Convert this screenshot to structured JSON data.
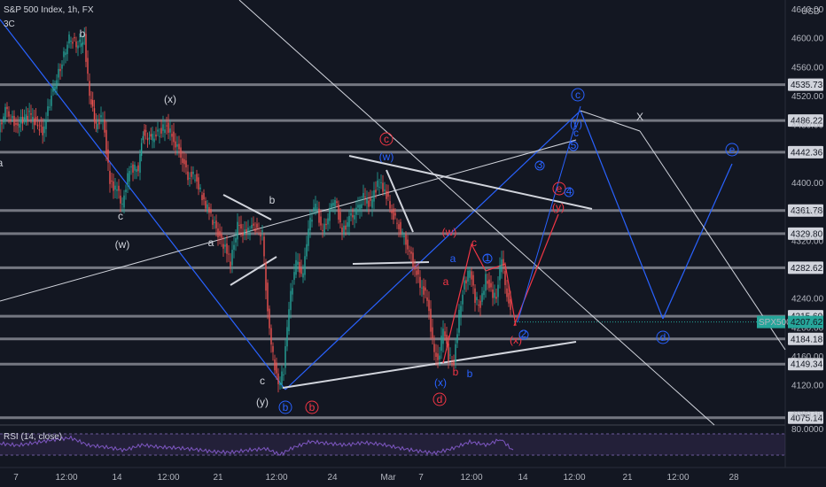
{
  "header": {
    "title": "S&P 500 Index, 1h, FX",
    "sub": "3C"
  },
  "currency": "USD",
  "rsi_label": "RSI (14, close)",
  "rsi_level": "80.0000",
  "colors": {
    "background": "#131722",
    "level_line": "#9598a1",
    "blue_wave": "#2962ff",
    "red_wave": "#f23645",
    "white_line": "#d1d4dc",
    "candle_up": "#26a69a",
    "candle_down": "#ef5350",
    "rsi": "#7e57c2",
    "price_tag": "#26a69a"
  },
  "chart_data": {
    "type": "candlestick",
    "title": "S&P 500 Index, 1h, FX",
    "y_axis_ticks": [
      "4640.00",
      "4600.00",
      "4560.00",
      "4520.00",
      "4480.00",
      "4400.00",
      "4360.00",
      "4320.00",
      "4240.00",
      "4200.00",
      "4160.00",
      "4120.00",
      "4080.00"
    ],
    "y_tick_values": [
      4640,
      4600,
      4560,
      4520,
      4480,
      4400,
      4360,
      4320,
      4240,
      4200,
      4160,
      4120,
      4080
    ],
    "ylim": [
      4070,
      4648
    ],
    "x_ticks": [
      "7",
      "12:00",
      "14",
      "12:00",
      "21",
      "12:00",
      "24",
      "Mar",
      "7",
      "12:00",
      "14",
      "12:00",
      "21",
      "12:00",
      "28"
    ],
    "horizontal_levels": [
      {
        "label": "4535.73",
        "value": 4535.73
      },
      {
        "label": "4486.22",
        "value": 4486.22
      },
      {
        "label": "4442.36",
        "value": 4442.36
      },
      {
        "label": "4361.78",
        "value": 4361.78
      },
      {
        "label": "4329.80",
        "value": 4329.8
      },
      {
        "label": "4282.62",
        "value": 4282.62
      },
      {
        "label": "4215.60",
        "value": 4215.6
      },
      {
        "label": "4184.18",
        "value": 4184.18
      },
      {
        "label": "4149.34",
        "value": 4149.34
      },
      {
        "label": "4075.14",
        "value": 4075.14
      }
    ],
    "current_price": {
      "symbol": "SPX500",
      "label": "4207.62",
      "value": 4207.62
    },
    "price_path": [
      [
        0,
        4470
      ],
      [
        8,
        4500
      ],
      [
        20,
        4480
      ],
      [
        35,
        4495
      ],
      [
        50,
        4470
      ],
      [
        60,
        4520
      ],
      [
        70,
        4560
      ],
      [
        80,
        4600
      ],
      [
        90,
        4590
      ],
      [
        97,
        4600
      ],
      [
        103,
        4520
      ],
      [
        110,
        4480
      ],
      [
        118,
        4490
      ],
      [
        126,
        4400
      ],
      [
        134,
        4390
      ],
      [
        140,
        4370
      ],
      [
        148,
        4420
      ],
      [
        158,
        4420
      ],
      [
        163,
        4470
      ],
      [
        172,
        4460
      ],
      [
        182,
        4470
      ],
      [
        190,
        4480
      ],
      [
        198,
        4460
      ],
      [
        206,
        4440
      ],
      [
        214,
        4410
      ],
      [
        222,
        4410
      ],
      [
        230,
        4380
      ],
      [
        238,
        4360
      ],
      [
        248,
        4330
      ],
      [
        256,
        4310
      ],
      [
        262,
        4290
      ],
      [
        270,
        4340
      ],
      [
        278,
        4330
      ],
      [
        288,
        4340
      ],
      [
        298,
        4330
      ],
      [
        304,
        4220
      ],
      [
        310,
        4160
      ],
      [
        316,
        4120
      ],
      [
        322,
        4140
      ],
      [
        328,
        4230
      ],
      [
        336,
        4290
      ],
      [
        344,
        4270
      ],
      [
        350,
        4340
      ],
      [
        358,
        4370
      ],
      [
        366,
        4330
      ],
      [
        374,
        4360
      ],
      [
        380,
        4380
      ],
      [
        388,
        4330
      ],
      [
        396,
        4350
      ],
      [
        404,
        4360
      ],
      [
        412,
        4380
      ],
      [
        420,
        4370
      ],
      [
        428,
        4400
      ],
      [
        436,
        4390
      ],
      [
        444,
        4360
      ],
      [
        452,
        4340
      ],
      [
        460,
        4320
      ],
      [
        468,
        4290
      ],
      [
        476,
        4260
      ],
      [
        484,
        4240
      ],
      [
        490,
        4180
      ],
      [
        496,
        4150
      ],
      [
        502,
        4200
      ],
      [
        508,
        4160
      ],
      [
        514,
        4150
      ],
      [
        520,
        4220
      ],
      [
        526,
        4260
      ],
      [
        532,
        4280
      ],
      [
        538,
        4240
      ],
      [
        544,
        4230
      ],
      [
        550,
        4270
      ],
      [
        556,
        4250
      ],
      [
        562,
        4240
      ],
      [
        568,
        4300
      ],
      [
        572,
        4260
      ],
      [
        578,
        4220
      ]
    ],
    "rsi_path": [
      [
        0,
        60
      ],
      [
        20,
        55
      ],
      [
        40,
        62
      ],
      [
        60,
        70
      ],
      [
        80,
        75
      ],
      [
        100,
        55
      ],
      [
        120,
        50
      ],
      [
        140,
        42
      ],
      [
        160,
        56
      ],
      [
        180,
        50
      ],
      [
        200,
        48
      ],
      [
        220,
        44
      ],
      [
        240,
        38
      ],
      [
        260,
        36
      ],
      [
        280,
        42
      ],
      [
        300,
        46
      ],
      [
        316,
        30
      ],
      [
        330,
        48
      ],
      [
        350,
        65
      ],
      [
        370,
        60
      ],
      [
        390,
        56
      ],
      [
        410,
        62
      ],
      [
        430,
        58
      ],
      [
        450,
        48
      ],
      [
        470,
        40
      ],
      [
        490,
        34
      ],
      [
        510,
        46
      ],
      [
        530,
        64
      ],
      [
        550,
        56
      ],
      [
        565,
        72
      ],
      [
        580,
        38
      ]
    ]
  },
  "wave_labels": [
    {
      "t": "b",
      "c": "#d1d4dc"
    },
    {
      "t": "(x)",
      "c": "#d1d4dc"
    },
    {
      "t": "c",
      "c": "#d1d4dc"
    },
    {
      "t": "(w)",
      "c": "#d1d4dc"
    },
    {
      "t": "a",
      "c": "#d1d4dc"
    },
    {
      "t": "b",
      "c": "#d1d4dc"
    },
    {
      "t": "c",
      "c": "#d1d4dc"
    },
    {
      "t": "(y)",
      "c": "#d1d4dc"
    },
    {
      "t": "a",
      "c": "#d1d4dc"
    },
    {
      "t": "X",
      "c": "#d1d4dc"
    },
    {
      "t": "(w)",
      "c": "#2962ff"
    },
    {
      "t": "(x)",
      "c": "#2962ff"
    },
    {
      "t": "a",
      "c": "#2962ff"
    },
    {
      "t": "b",
      "c": "#2962ff"
    },
    {
      "t": "c",
      "c": "#2962ff"
    },
    {
      "t": "(y)",
      "c": "#2962ff"
    },
    {
      "t": "(w)",
      "c": "#f23645"
    },
    {
      "t": "a",
      "c": "#f23645"
    },
    {
      "t": "b",
      "c": "#f23645"
    },
    {
      "t": "c",
      "c": "#f23645"
    },
    {
      "t": "(y)",
      "c": "#f23645"
    },
    {
      "t": "(x)",
      "c": "#f23645"
    }
  ],
  "circled_labels": [
    {
      "t": "c",
      "c": "#2962ff"
    },
    {
      "t": "c",
      "c": "#f23645"
    },
    {
      "t": "b",
      "c": "#2962ff"
    },
    {
      "t": "b",
      "c": "#f23645"
    },
    {
      "t": "d",
      "c": "#f23645"
    },
    {
      "t": "d",
      "c": "#2962ff"
    },
    {
      "t": "e",
      "c": "#2962ff"
    },
    {
      "t": "e",
      "c": "#f23645"
    },
    {
      "t": "3",
      "c": "#2962ff"
    },
    {
      "t": "4",
      "c": "#2962ff"
    },
    {
      "t": "5",
      "c": "#2962ff"
    },
    {
      "t": "1",
      "c": "#2962ff"
    },
    {
      "t": "2",
      "c": "#2962ff"
    }
  ]
}
